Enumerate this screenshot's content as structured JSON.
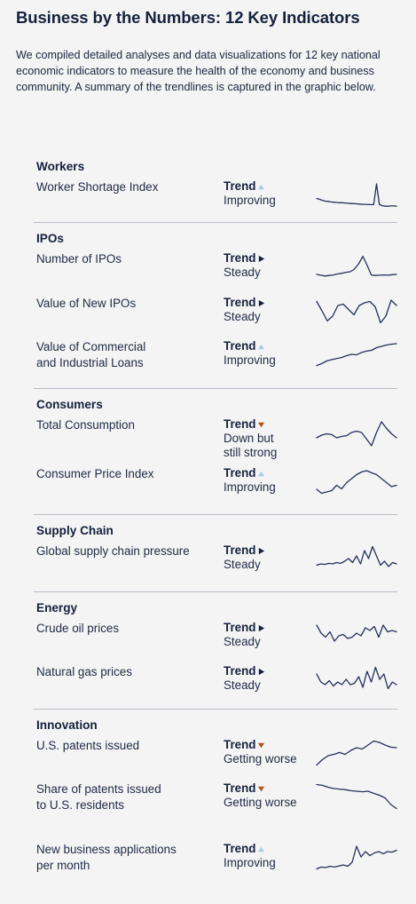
{
  "title": "Business by the Numbers: 12 Key Indicators",
  "intro": "We compiled detailed analyses and data visualizations for 12 key national economic indicators to measure the health of the economy and business community. A summary of the trendlines is captured in the graphic below.",
  "trend_word": "Trend",
  "colors": {
    "improving": "#a9cde6",
    "steady": "#14213d",
    "worse": "#b3521c",
    "line": "#24305a"
  },
  "sections": [
    {
      "title": "Workers",
      "rows": [
        {
          "label": "Worker Shortage Index",
          "direction": "up",
          "status": "Improving",
          "series": [
            0.65,
            0.68,
            0.72,
            0.75,
            0.76,
            0.78,
            0.79,
            0.8,
            0.81,
            0.81,
            0.82,
            0.83,
            0.84,
            0.84,
            0.85,
            0.86,
            0.87,
            0.87,
            0.88,
            0.88,
            0.88,
            0.1,
            0.87,
            0.92,
            0.94,
            0.94,
            0.93,
            0.93,
            0.94
          ]
        }
      ]
    },
    {
      "title": "IPOs",
      "rows": [
        {
          "label": "Number of IPOs",
          "direction": "right",
          "status": "Steady",
          "series": [
            0.8,
            0.83,
            0.86,
            0.84,
            0.82,
            0.78,
            0.76,
            0.72,
            0.7,
            0.6,
            0.4,
            0.12,
            0.45,
            0.82,
            0.84,
            0.83,
            0.82,
            0.83,
            0.81,
            0.8
          ]
        },
        {
          "label": "Value of New IPOs",
          "direction": "right",
          "status": "Steady",
          "series": [
            0.15,
            0.5,
            0.88,
            0.7,
            0.3,
            0.25,
            0.45,
            0.65,
            0.3,
            0.2,
            0.15,
            0.35,
            0.95,
            0.7,
            0.1,
            0.3
          ]
        },
        {
          "label": "Value of Commercial\nand Industrial Loans",
          "direction": "up",
          "status": "Improving",
          "series": [
            0.92,
            0.85,
            0.75,
            0.7,
            0.66,
            0.62,
            0.55,
            0.5,
            0.52,
            0.43,
            0.38,
            0.35,
            0.25,
            0.2,
            0.15,
            0.12,
            0.1
          ]
        }
      ]
    },
    {
      "title": "Consumers",
      "rows": [
        {
          "label": "Total Consumption",
          "direction": "down",
          "status": "Down but\nstill strong",
          "series": [
            0.7,
            0.6,
            0.55,
            0.58,
            0.7,
            0.65,
            0.62,
            0.5,
            0.45,
            0.5,
            0.75,
            1.0,
            0.5,
            0.1,
            0.35,
            0.55,
            0.7
          ]
        },
        {
          "label": "Consumer Price Index",
          "direction": "up",
          "status": "Improving",
          "series": [
            0.8,
            0.95,
            0.9,
            0.85,
            0.65,
            0.78,
            0.55,
            0.4,
            0.25,
            0.15,
            0.1,
            0.18,
            0.25,
            0.4,
            0.55,
            0.7,
            0.65
          ]
        }
      ]
    },
    {
      "title": "Supply Chain",
      "rows": [
        {
          "label": "Global supply chain pressure",
          "direction": "right",
          "status": "Steady",
          "series": [
            0.75,
            0.7,
            0.72,
            0.68,
            0.7,
            0.65,
            0.68,
            0.6,
            0.5,
            0.65,
            0.4,
            0.7,
            0.2,
            0.5,
            0.05,
            0.4,
            0.75,
            0.6,
            0.8,
            0.65,
            0.7
          ]
        }
      ]
    },
    {
      "title": "Energy",
      "rows": [
        {
          "label": "Crude oil prices",
          "direction": "right",
          "status": "Steady",
          "series": [
            0.1,
            0.4,
            0.55,
            0.35,
            0.7,
            0.5,
            0.45,
            0.6,
            0.55,
            0.4,
            0.5,
            0.2,
            0.3,
            0.15,
            0.55,
            0.1,
            0.35,
            0.3,
            0.35
          ]
        },
        {
          "label": "Natural gas prices",
          "direction": "right",
          "status": "Steady",
          "series": [
            0.3,
            0.6,
            0.7,
            0.55,
            0.75,
            0.6,
            0.7,
            0.5,
            0.7,
            0.65,
            0.4,
            0.8,
            0.2,
            0.6,
            0.05,
            0.5,
            0.3,
            0.85,
            0.6,
            0.7
          ]
        }
      ]
    },
    {
      "title": "Innovation",
      "rows": [
        {
          "label": "U.S. patents issued",
          "direction": "down",
          "status": "Getting worse",
          "series": [
            0.95,
            0.75,
            0.6,
            0.55,
            0.48,
            0.55,
            0.4,
            0.3,
            0.35,
            0.2,
            0.05,
            0.1,
            0.2,
            0.28,
            0.3
          ]
        },
        {
          "label": "Share of patents issued\nto U.S. residents",
          "direction": "down",
          "status": "Getting worse",
          "series": [
            0.05,
            0.08,
            0.15,
            0.2,
            0.22,
            0.24,
            0.28,
            0.3,
            0.32,
            0.3,
            0.38,
            0.45,
            0.55,
            0.8,
            0.95
          ]
        },
        {
          "label": "New business applications\nper month",
          "direction": "up",
          "status": "Improving",
          "series": [
            0.95,
            0.88,
            0.9,
            0.85,
            0.88,
            0.84,
            0.8,
            0.85,
            0.7,
            0.1,
            0.5,
            0.3,
            0.45,
            0.35,
            0.3,
            0.38,
            0.3,
            0.32,
            0.25
          ]
        }
      ]
    }
  ]
}
